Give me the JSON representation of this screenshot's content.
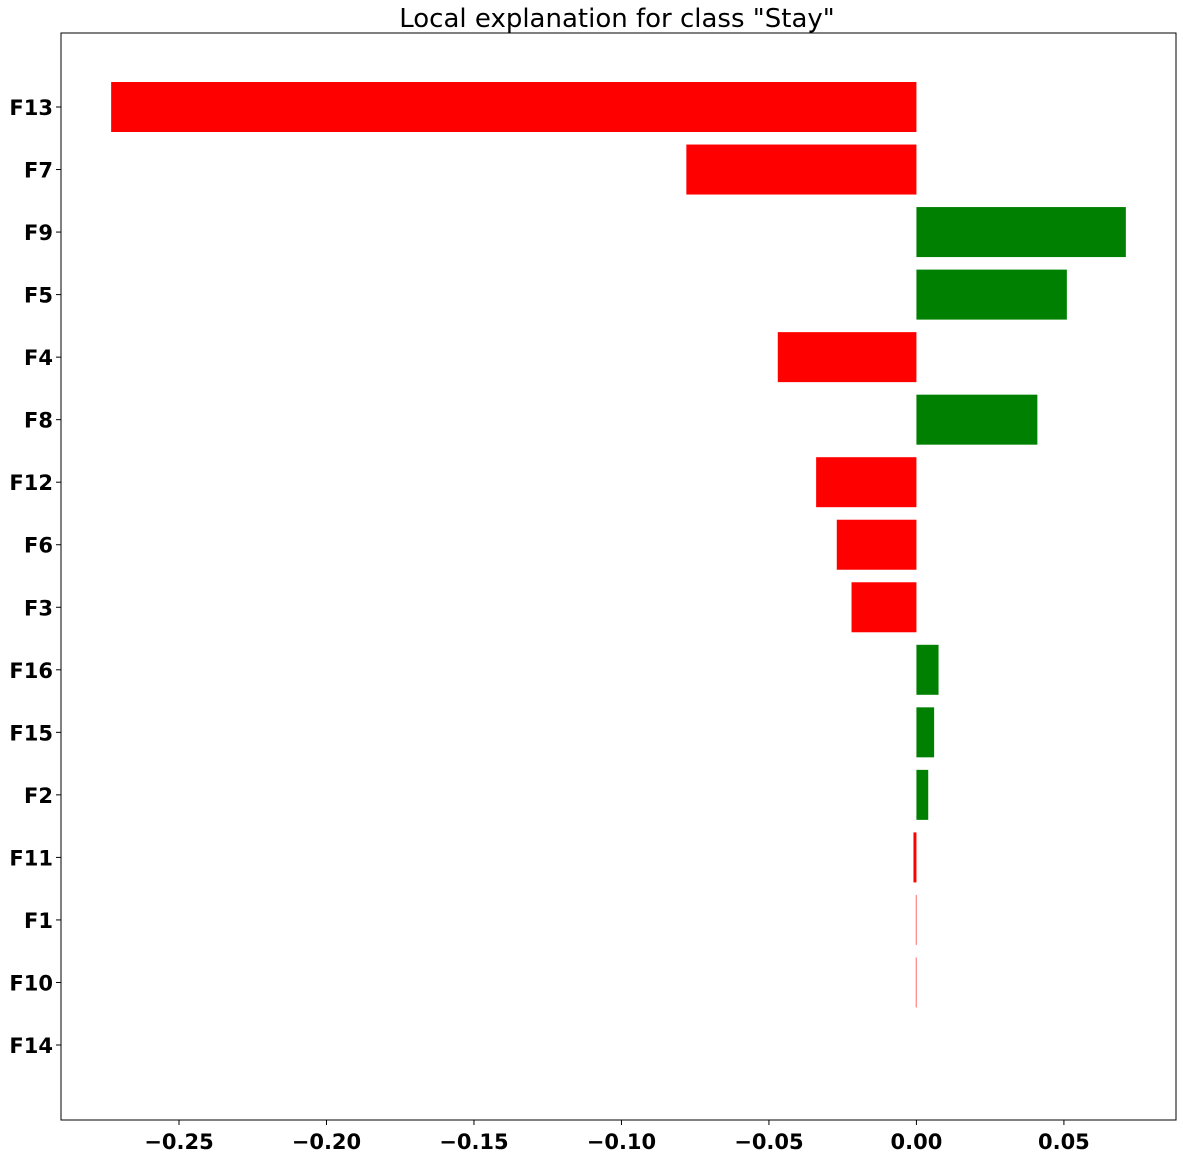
{
  "chart_data": {
    "type": "bar",
    "orientation": "horizontal",
    "title": "Local explanation for class \"Stay\"",
    "xlabel": "",
    "ylabel": "",
    "categories": [
      "F13",
      "F7",
      "F9",
      "F5",
      "F4",
      "F8",
      "F12",
      "F6",
      "F3",
      "F16",
      "F15",
      "F2",
      "F11",
      "F1",
      "F10",
      "F14"
    ],
    "values": [
      -0.273,
      -0.078,
      0.071,
      0.051,
      -0.047,
      0.041,
      -0.034,
      -0.027,
      -0.022,
      0.0075,
      0.006,
      0.004,
      -0.001,
      -0.0002,
      -0.0002,
      0.0
    ],
    "xlim": [
      -0.29,
      0.088
    ],
    "xticks": [
      -0.25,
      -0.2,
      -0.15,
      -0.1,
      -0.05,
      0.0,
      0.05
    ],
    "xtick_labels": [
      "−0.25",
      "−0.20",
      "−0.15",
      "−0.10",
      "−0.05",
      "0.00",
      "0.05"
    ],
    "grid": false,
    "colors": {
      "positive": "#008000",
      "negative": "#ff0000"
    }
  }
}
